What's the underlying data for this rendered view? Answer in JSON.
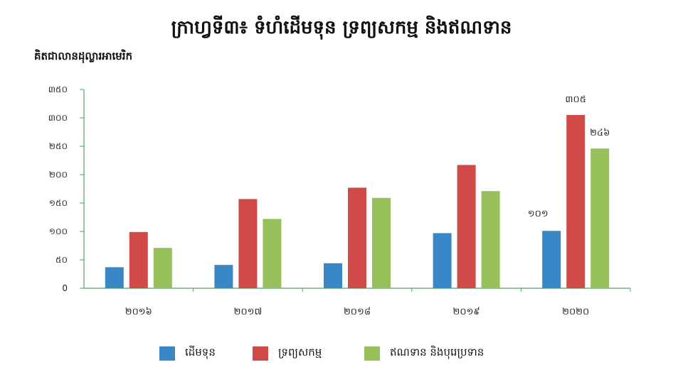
{
  "chart_data": {
    "type": "bar",
    "title": "ក្រាហ្វទី៣៖ ទំហំដើមទុន ទ្រព្យសកម្ម និងឥណទាន",
    "ylabel": "គិតជាលានដុល្លារអាមេរិក",
    "xlabel": "",
    "categories": [
      "២០១៦",
      "២០១៧",
      "២០១៨",
      "២០១៩",
      "២០២០"
    ],
    "ylim": [
      0,
      350
    ],
    "yticks": [
      0,
      50,
      100,
      150,
      200,
      250,
      300,
      350
    ],
    "ytick_labels": [
      "0",
      "៥០",
      "១០០",
      "១៥០",
      "២០០",
      "២៥០",
      "៣០០",
      "៣៥០"
    ],
    "grid": false,
    "legend_position": "bottom",
    "series": [
      {
        "name": "ដើមទុន",
        "color": "#3a87c8",
        "values": [
          37,
          41,
          44,
          97,
          101
        ],
        "data_labels": [
          null,
          null,
          null,
          null,
          "១០១"
        ]
      },
      {
        "name": "ទ្រព្យសកម្ម",
        "color": "#d04a47",
        "values": [
          99,
          157,
          177,
          217,
          305
        ],
        "data_labels": [
          null,
          null,
          null,
          null,
          "៣០៥"
        ]
      },
      {
        "name": "ឥណទាន និងបុរេប្រទាន",
        "color": "#97c05a",
        "values": [
          71,
          122,
          159,
          171,
          246
        ],
        "data_labels": [
          null,
          null,
          null,
          null,
          "២៤៦"
        ]
      }
    ]
  }
}
